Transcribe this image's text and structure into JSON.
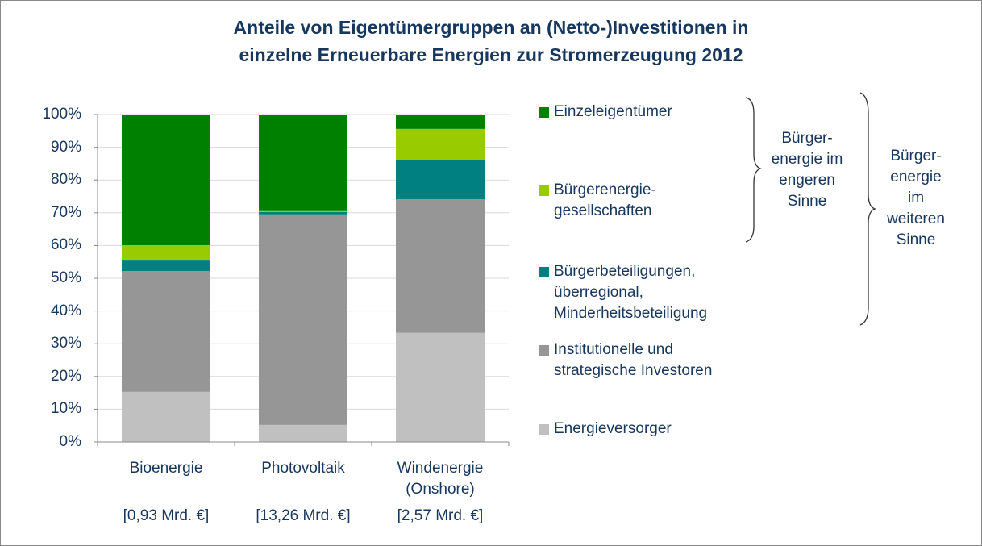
{
  "chart_data": {
    "type": "stacked_bar",
    "title": "Anteile von Eigentümergruppen an (Netto-)Investitionen in\neinzelne Erneuerbare Energien zur Stromerzeugung 2012",
    "categories": [
      "Bioenergie",
      "Photovoltaik",
      "Windenergie\n(Onshore)"
    ],
    "category_totals": [
      "[0,93 Mrd. €]",
      "[13,26 Mrd. €]",
      "[2,57 Mrd. €]"
    ],
    "series": [
      {
        "name": "Energieversorger",
        "color": "#c0c0c0",
        "values": [
          15.3,
          5.2,
          33.3
        ]
      },
      {
        "name": "Institutionelle und\nstrategische Investoren",
        "color": "#969696",
        "values": [
          36.9,
          64.3,
          40.8
        ]
      },
      {
        "name": "Bürgerbeteiligungen,\nüberregional,\nMinderheitsbeteiligung",
        "color": "#008080",
        "values": [
          3.2,
          0.7,
          11.9
        ]
      },
      {
        "name": "Bürgerenergie-\ngesellschaften",
        "color": "#99cc00",
        "values": [
          4.7,
          0.3,
          9.6
        ]
      },
      {
        "name": "Einzeleigentümer",
        "color": "#008000",
        "values": [
          39.9,
          29.5,
          4.4
        ]
      }
    ],
    "ylim": [
      0,
      100
    ],
    "yticks": [
      {
        "value": 0,
        "label": "0%"
      },
      {
        "value": 10,
        "label": "10%"
      },
      {
        "value": 20,
        "label": "20%"
      },
      {
        "value": 30,
        "label": "30%"
      },
      {
        "value": 40,
        "label": "40%"
      },
      {
        "value": 50,
        "label": "50%"
      },
      {
        "value": 60,
        "label": "60%"
      },
      {
        "value": 70,
        "label": "70%"
      },
      {
        "value": 80,
        "label": "80%"
      },
      {
        "value": 90,
        "label": "90%"
      },
      {
        "value": 100,
        "label": "100%"
      }
    ],
    "grid": true,
    "annotations": [
      "Bürger-\nenergie im\nengeren\nSinne",
      "Bürger-\nenergie\nim\nweiteren\nSinne"
    ]
  }
}
